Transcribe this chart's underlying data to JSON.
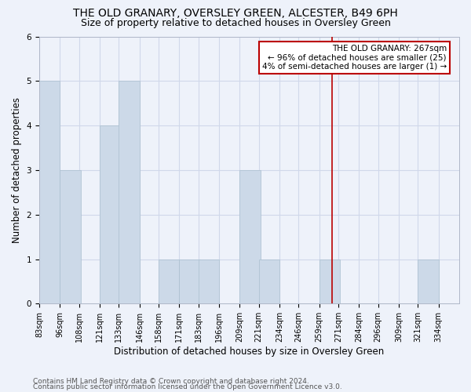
{
  "title": "THE OLD GRANARY, OVERSLEY GREEN, ALCESTER, B49 6PH",
  "subtitle": "Size of property relative to detached houses in Oversley Green",
  "xlabel": "Distribution of detached houses by size in Oversley Green",
  "ylabel": "Number of detached properties",
  "bar_color": "#ccd9e8",
  "bar_edgecolor": "#aabfcf",
  "annotation_line1": "THE OLD GRANARY: 267sqm",
  "annotation_line2": "← 96% of detached houses are smaller (25)",
  "annotation_line3": "4% of semi-detached houses are larger (1) →",
  "ref_line_x": 267,
  "ref_line_color": "#bb0000",
  "footer1": "Contains HM Land Registry data © Crown copyright and database right 2024.",
  "footer2": "Contains public sector information licensed under the Open Government Licence v3.0.",
  "bins": [
    83,
    96,
    108,
    121,
    133,
    146,
    158,
    171,
    183,
    196,
    209,
    221,
    234,
    246,
    259,
    271,
    284,
    296,
    309,
    321,
    334
  ],
  "counts": [
    5,
    3,
    0,
    4,
    5,
    0,
    1,
    1,
    1,
    0,
    3,
    1,
    0,
    0,
    1,
    0,
    0,
    0,
    0,
    1
  ],
  "ylim": [
    0,
    6
  ],
  "yticks": [
    0,
    1,
    2,
    3,
    4,
    5,
    6
  ],
  "grid_color": "#d0d8ea",
  "background_color": "#eef2fa",
  "title_fontsize": 10,
  "subtitle_fontsize": 9,
  "label_fontsize": 8.5,
  "tick_fontsize": 7,
  "footer_fontsize": 6.5,
  "annotation_fontsize": 7.5
}
